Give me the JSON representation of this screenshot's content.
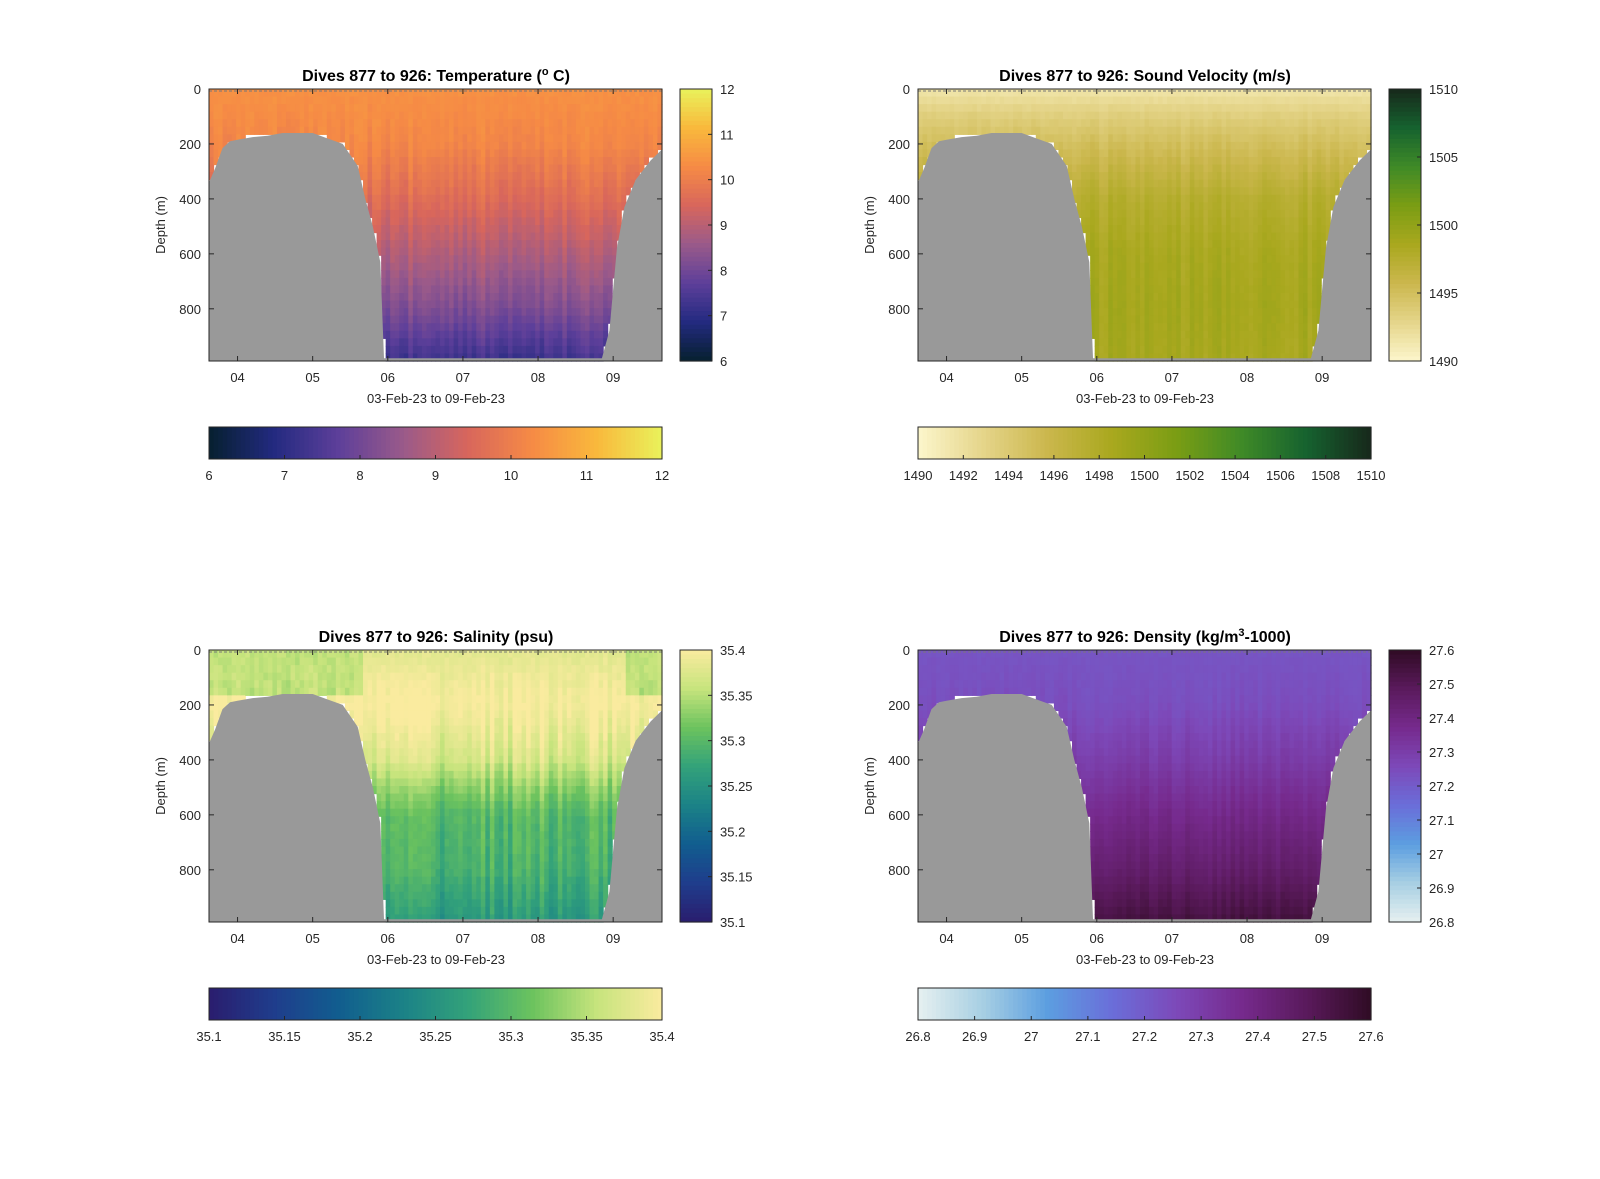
{
  "figure": {
    "background": "#ffffff",
    "terrain_color": "#999999"
  },
  "chart_data": [
    {
      "id": "temperature",
      "type": "heatmap",
      "title_prefix": "Dives 877 to 926: Temperature (",
      "title_sup": "o",
      "title_suffix": " C)",
      "ylabel": "Depth (m)",
      "xlabel": "03-Feb-23 to 09-Feb-23",
      "xticks": [
        "04",
        "05",
        "06",
        "07",
        "08",
        "09"
      ],
      "xtick_values": [
        4,
        5,
        6,
        7,
        8,
        9
      ],
      "xlim": [
        3.62,
        9.65
      ],
      "yticks": [
        "0",
        "200",
        "400",
        "600",
        "800"
      ],
      "ytick_values": [
        0,
        200,
        400,
        600,
        800
      ],
      "ylim": [
        0,
        990
      ],
      "y_reversed": true,
      "colormap": [
        "#06202f",
        "#232a80",
        "#5d3f9a",
        "#9a5a8a",
        "#d8665c",
        "#f68b45",
        "#f9b93c",
        "#e9f25b"
      ],
      "clim": [
        6,
        12
      ],
      "side_colorbar_ticks": [
        "6",
        "7",
        "8",
        "9",
        "10",
        "11",
        "12"
      ],
      "side_colorbar_values": [
        6,
        7,
        8,
        9,
        10,
        11,
        12
      ],
      "bottom_colorbar_ticks": [
        "6",
        "7",
        "8",
        "9",
        "10",
        "11",
        "12"
      ],
      "bottom_colorbar_values": [
        6,
        7,
        8,
        9,
        10,
        11,
        12
      ],
      "profile": {
        "surface": 10.4,
        "depth_values": [
          0,
          200,
          400,
          600,
          800,
          980
        ],
        "values": [
          10.4,
          10.2,
          9.6,
          8.9,
          8.2,
          7.3
        ],
        "noise": 0.25
      }
    },
    {
      "id": "sound_velocity",
      "type": "heatmap",
      "title_prefix": "Dives 877 to 926: Sound Velocity (m/s)",
      "title_sup": "",
      "title_suffix": "",
      "ylabel": "Depth (m)",
      "xlabel": "03-Feb-23 to 09-Feb-23",
      "xticks": [
        "04",
        "05",
        "06",
        "07",
        "08",
        "09"
      ],
      "xtick_values": [
        4,
        5,
        6,
        7,
        8,
        9
      ],
      "xlim": [
        3.62,
        9.65
      ],
      "yticks": [
        "0",
        "200",
        "400",
        "600",
        "800"
      ],
      "ytick_values": [
        0,
        200,
        400,
        600,
        800
      ],
      "ylim": [
        0,
        990
      ],
      "y_reversed": true,
      "colormap": [
        "#fcf6cc",
        "#e5d58a",
        "#cbb74d",
        "#a9a81e",
        "#7a9d14",
        "#3f8a27",
        "#16622f",
        "#17281b"
      ],
      "clim": [
        1490,
        1510
      ],
      "side_colorbar_ticks": [
        "1490",
        "1495",
        "1500",
        "1505",
        "1510"
      ],
      "side_colorbar_values": [
        1490,
        1495,
        1500,
        1505,
        1510
      ],
      "bottom_colorbar_ticks": [
        "1490",
        "1492",
        "1494",
        "1496",
        "1498",
        "1500",
        "1502",
        "1504",
        "1506",
        "1508",
        "1510"
      ],
      "bottom_colorbar_values": [
        1490,
        1492,
        1494,
        1496,
        1498,
        1500,
        1502,
        1504,
        1506,
        1508,
        1510
      ],
      "profile": {
        "depth_values": [
          0,
          100,
          200,
          400,
          600,
          800,
          980
        ],
        "values": [
          1491.5,
          1493.5,
          1495.0,
          1497.5,
          1498.5,
          1498.8,
          1498.6
        ],
        "noise": 0.6
      }
    },
    {
      "id": "salinity",
      "type": "heatmap",
      "title_prefix": "Dives 877 to 926: Salinity (psu)",
      "title_sup": "",
      "title_suffix": "",
      "ylabel": "Depth (m)",
      "xlabel": "03-Feb-23 to 09-Feb-23",
      "xticks": [
        "04",
        "05",
        "06",
        "07",
        "08",
        "09"
      ],
      "xtick_values": [
        4,
        5,
        6,
        7,
        8,
        9
      ],
      "xlim": [
        3.62,
        9.65
      ],
      "yticks": [
        "0",
        "200",
        "400",
        "600",
        "800"
      ],
      "ytick_values": [
        0,
        200,
        400,
        600,
        800
      ],
      "ylim": [
        0,
        990
      ],
      "y_reversed": true,
      "colormap": [
        "#2a1d6e",
        "#1f3d8c",
        "#115d8f",
        "#1b8287",
        "#33a27a",
        "#6cc35e",
        "#c7e47d",
        "#faeb9f"
      ],
      "clim": [
        35.1,
        35.4
      ],
      "side_colorbar_ticks": [
        "35.1",
        "35.15",
        "35.2",
        "35.25",
        "35.3",
        "35.35",
        "35.4"
      ],
      "side_colorbar_values": [
        35.1,
        35.15,
        35.2,
        35.25,
        35.3,
        35.35,
        35.4
      ],
      "bottom_colorbar_ticks": [
        "35.1",
        "35.15",
        "35.2",
        "35.25",
        "35.3",
        "35.35",
        "35.4"
      ],
      "bottom_colorbar_values": [
        35.1,
        35.15,
        35.2,
        35.25,
        35.3,
        35.35,
        35.4
      ],
      "profile": {
        "depth_values": [
          0,
          200,
          400,
          500,
          600,
          800,
          980
        ],
        "values": [
          35.38,
          35.4,
          35.37,
          35.33,
          35.3,
          35.29,
          35.26
        ],
        "noise": 0.02,
        "shelf_values": [
          35.35,
          35.36
        ]
      }
    },
    {
      "id": "density",
      "type": "heatmap",
      "title_prefix": "Dives 877 to 926: Density (kg/m",
      "title_sup": "3",
      "title_suffix": "-1000)",
      "ylabel": "Depth (m)",
      "xlabel": "03-Feb-23 to 09-Feb-23",
      "xticks": [
        "04",
        "05",
        "06",
        "07",
        "08",
        "09"
      ],
      "xtick_values": [
        4,
        5,
        6,
        7,
        8,
        9
      ],
      "xlim": [
        3.62,
        9.65
      ],
      "yticks": [
        "0",
        "200",
        "400",
        "600",
        "800"
      ],
      "ytick_values": [
        0,
        200,
        400,
        600,
        800
      ],
      "ylim": [
        0,
        990
      ],
      "y_reversed": true,
      "colormap": [
        "#e6f0f0",
        "#a7cfe3",
        "#5c9ee0",
        "#6a6ed9",
        "#7d49b9",
        "#762a8d",
        "#5a1a5c",
        "#300b24"
      ],
      "clim": [
        26.8,
        27.6
      ],
      "side_colorbar_ticks": [
        "26.8",
        "26.9",
        "27",
        "27.1",
        "27.2",
        "27.3",
        "27.4",
        "27.5",
        "27.6"
      ],
      "side_colorbar_values": [
        26.8,
        26.9,
        27.0,
        27.1,
        27.2,
        27.3,
        27.4,
        27.5,
        27.6
      ],
      "bottom_colorbar_ticks": [
        "26.8",
        "26.9",
        "27",
        "27.1",
        "27.2",
        "27.3",
        "27.4",
        "27.5",
        "27.6"
      ],
      "bottom_colorbar_values": [
        26.8,
        26.9,
        27.0,
        27.1,
        27.2,
        27.3,
        27.4,
        27.5,
        27.6
      ],
      "profile": {
        "depth_values": [
          0,
          200,
          400,
          600,
          800,
          980
        ],
        "values": [
          27.22,
          27.24,
          27.3,
          27.38,
          27.45,
          27.54
        ],
        "noise": 0.02
      }
    }
  ],
  "seafloor_depth": {
    "x": [
      3.62,
      3.7,
      3.8,
      3.9,
      4.0,
      4.2,
      4.4,
      4.6,
      4.8,
      5.0,
      5.2,
      5.4,
      5.5,
      5.6,
      5.7,
      5.8,
      5.9,
      5.95,
      6.05,
      6.5,
      7.0,
      7.5,
      8.0,
      8.5,
      8.85,
      8.95,
      9.05,
      9.15,
      9.3,
      9.5,
      9.65
    ],
    "y": [
      340,
      290,
      215,
      190,
      185,
      175,
      170,
      160,
      160,
      160,
      180,
      200,
      240,
      280,
      400,
      500,
      630,
      980,
      980,
      980,
      980,
      980,
      980,
      980,
      980,
      880,
      580,
      430,
      330,
      260,
      220
    ]
  }
}
